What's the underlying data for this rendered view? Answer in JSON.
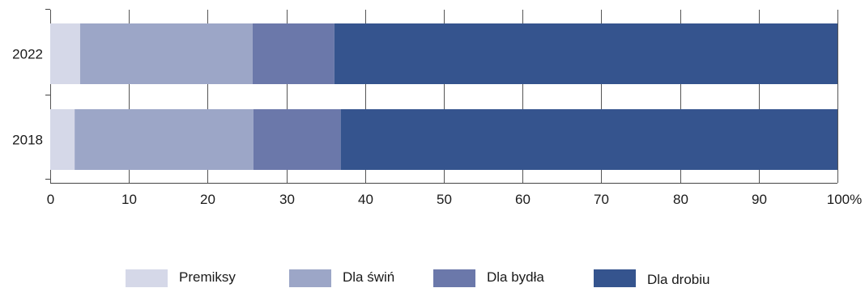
{
  "chart_data": {
    "type": "bar",
    "orientation": "horizontal",
    "stacked": true,
    "percent": true,
    "categories": [
      "2022",
      "2018"
    ],
    "series": [
      {
        "name": "Premiksy",
        "values": [
          3.8,
          3.1
        ],
        "color": "#d5d8e8"
      },
      {
        "name": "Dla świń",
        "values": [
          21.9,
          22.7
        ],
        "color": "#9ca6c7"
      },
      {
        "name": "Dla bydła",
        "values": [
          10.4,
          11.1
        ],
        "color": "#6b78aa"
      },
      {
        "name": "Dla drobiu",
        "values": [
          63.9,
          63.1
        ],
        "color": "#35548e"
      }
    ],
    "xlim": [
      0,
      100
    ],
    "xticks": [
      {
        "value": 0,
        "label": "0"
      },
      {
        "value": 10,
        "label": "10"
      },
      {
        "value": 20,
        "label": "20"
      },
      {
        "value": 30,
        "label": "30"
      },
      {
        "value": 40,
        "label": "40"
      },
      {
        "value": 50,
        "label": "50"
      },
      {
        "value": 60,
        "label": "60"
      },
      {
        "value": 70,
        "label": "70"
      },
      {
        "value": 80,
        "label": "80"
      },
      {
        "value": 90,
        "label": "90"
      },
      {
        "value": 100,
        "label": "100%"
      }
    ],
    "grid": true,
    "legend_position": "bottom"
  }
}
